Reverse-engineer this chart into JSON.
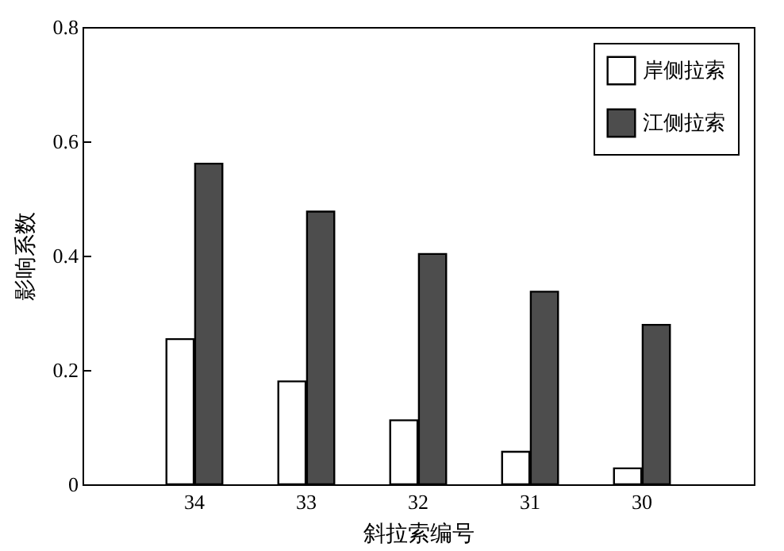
{
  "chart_data": {
    "type": "bar",
    "xlabel": "斜拉索编号",
    "ylabel": "影响系数",
    "categories": [
      "34",
      "33",
      "32",
      "31",
      "30"
    ],
    "series": [
      {
        "name": "岸侧拉索",
        "color": "#ffffff",
        "values": [
          0.254,
          0.18,
          0.112,
          0.057,
          0.028
        ]
      },
      {
        "name": "江侧拉索",
        "color": "#4d4d4d",
        "values": [
          0.561,
          0.477,
          0.403,
          0.337,
          0.279
        ]
      }
    ],
    "ylim": [
      0,
      0.8
    ],
    "yticks": [
      0,
      0.2,
      0.4,
      0.6,
      0.8
    ],
    "grid": false,
    "legend": "top right"
  }
}
